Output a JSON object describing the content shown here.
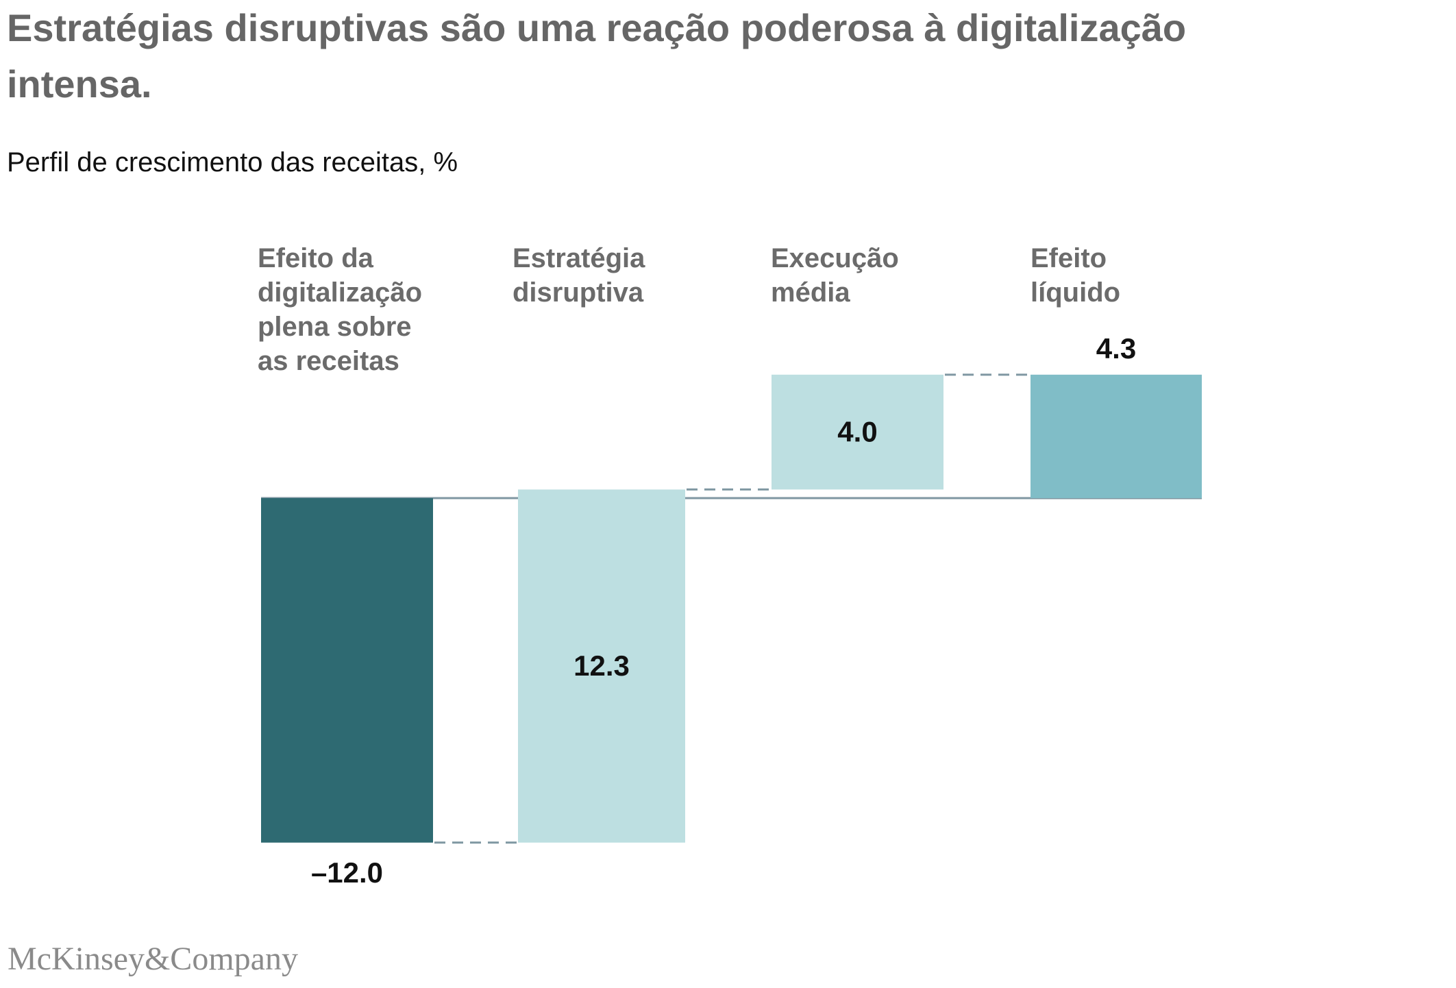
{
  "title": "Estratégias disruptivas são uma reação poderosa à digitalização intensa.",
  "subtitle": "Perfil de crescimento das receitas, %",
  "logo": "McKinsey&Company",
  "chart_data": {
    "type": "waterfall",
    "title": "Estratégias disruptivas são uma reação poderosa à digitalização intensa.",
    "ylabel": "Perfil de crescimento das receitas, %",
    "categories": [
      "Efeito da\ndigitalização\nplena sobre\nas receitas",
      "Estratégia\ndisruptiva",
      "Execução\nmédia",
      "Efeito\nlíquido"
    ],
    "values": [
      -12.0,
      12.3,
      4.0,
      4.3
    ],
    "value_labels": [
      "–12.0",
      "12.3",
      "4.0",
      "4.3"
    ],
    "kinds": [
      "delta",
      "delta",
      "delta",
      "total"
    ],
    "colors": [
      "#2e6a72",
      "#bddfe1",
      "#bddfe1",
      "#80bdc7"
    ],
    "connector_color": "#7f97a2",
    "grid": false
  }
}
